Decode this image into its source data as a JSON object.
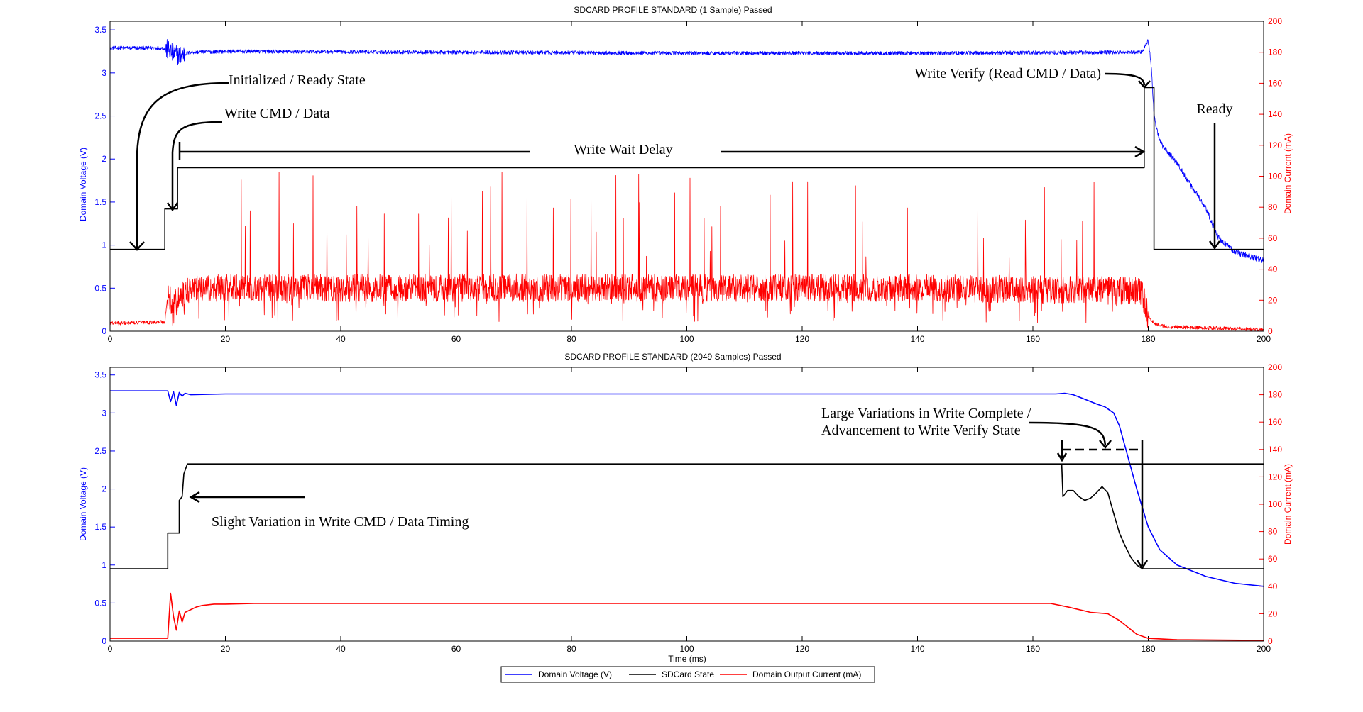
{
  "chart_data": [
    {
      "type": "line",
      "title": "SDCARD PROFILE STANDARD (1 Sample) Passed",
      "xlabel": "",
      "ylabel": "Domain Voltage (V)",
      "y2label": "Domain Current (mA)",
      "xlim": [
        0,
        200
      ],
      "ylim": [
        0,
        3.6
      ],
      "y2lim": [
        0,
        200
      ],
      "xticks": [
        0,
        20,
        40,
        60,
        80,
        100,
        120,
        140,
        160,
        180,
        200
      ],
      "yticks": [
        0,
        0.5,
        1,
        1.5,
        2,
        2.5,
        3,
        3.5
      ],
      "y2ticks": [
        0,
        20,
        40,
        60,
        80,
        100,
        120,
        140,
        160,
        180,
        200
      ],
      "grid": false,
      "series": [
        {
          "name": "Domain Voltage (V)",
          "axis": "left",
          "color": "#0000ff",
          "noisy": true,
          "x": [
            0,
            9,
            10,
            11,
            12,
            13,
            14,
            20,
            60,
            100,
            140,
            178,
            179,
            180,
            180.5,
            181,
            182,
            185,
            190,
            192,
            195,
            200
          ],
          "y": [
            3.29,
            3.29,
            3.27,
            3.22,
            3.2,
            3.22,
            3.24,
            3.25,
            3.24,
            3.23,
            3.23,
            3.24,
            3.25,
            3.38,
            3.1,
            2.5,
            2.2,
            1.95,
            1.42,
            1.1,
            0.92,
            0.82
          ]
        },
        {
          "name": "SDCard State",
          "axis": "left",
          "color": "#000000",
          "x": [
            0,
            9.5,
            9.5,
            11.7,
            11.7,
            179.3,
            179.3,
            181,
            181,
            200
          ],
          "y": [
            0.95,
            0.95,
            1.42,
            1.42,
            1.9,
            1.9,
            2.83,
            2.83,
            0.95,
            0.95
          ]
        },
        {
          "name": "Domain Output Current (mA)",
          "axis": "right",
          "color": "#ff0000",
          "noisy": true,
          "spiky": true,
          "x": [
            0,
            9.5,
            10,
            11,
            12,
            14,
            20,
            60,
            100,
            140,
            178,
            179,
            180,
            181,
            183,
            200
          ],
          "y": [
            5,
            6,
            23,
            16,
            22,
            27,
            28,
            28,
            28,
            28,
            26,
            24,
            10,
            5,
            3,
            1
          ]
        }
      ],
      "annotations": [
        "Initialized / Ready State",
        "Write CMD / Data",
        "Write Wait Delay",
        "Write Verify (Read CMD / Data)",
        "Ready"
      ]
    },
    {
      "type": "line",
      "title": "SDCARD PROFILE STANDARD (2049 Samples) Passed",
      "xlabel": "Time (ms)",
      "ylabel": "Domain Voltage (V)",
      "y2label": "Domain Current (mA)",
      "xlim": [
        0,
        200
      ],
      "ylim": [
        0,
        3.6
      ],
      "y2lim": [
        0,
        200
      ],
      "xticks": [
        0,
        20,
        40,
        60,
        80,
        100,
        120,
        140,
        160,
        180,
        200
      ],
      "yticks": [
        0,
        0.5,
        1,
        1.5,
        2,
        2.5,
        3,
        3.5
      ],
      "y2ticks": [
        0,
        20,
        40,
        60,
        80,
        100,
        120,
        140,
        160,
        180,
        200
      ],
      "grid": false,
      "series": [
        {
          "name": "Domain Voltage (V)",
          "axis": "left",
          "color": "#0000ff",
          "x": [
            0,
            10,
            10.5,
            11,
            11.5,
            12,
            12.5,
            13,
            14,
            20,
            60,
            100,
            140,
            164,
            165.5,
            167,
            169,
            171,
            172.5,
            174,
            175,
            178,
            180,
            182,
            185,
            190,
            195,
            200
          ],
          "y": [
            3.29,
            3.29,
            3.15,
            3.28,
            3.1,
            3.27,
            3.22,
            3.26,
            3.24,
            3.25,
            3.25,
            3.25,
            3.25,
            3.25,
            3.26,
            3.24,
            3.18,
            3.12,
            3.08,
            3.0,
            2.83,
            2.0,
            1.5,
            1.2,
            1.0,
            0.85,
            0.76,
            0.72
          ]
        },
        {
          "name": "SDCard State",
          "axis": "left",
          "color": "#000000",
          "x": [
            0,
            10,
            10,
            12,
            12,
            12.5,
            12.8,
            13.4,
            200
          ],
          "y": [
            0.95,
            0.95,
            1.42,
            1.42,
            1.85,
            1.9,
            2.2,
            2.33,
            2.33
          ],
          "tail": {
            "x": [
              165,
              165.2,
              166,
              167,
              168,
              169,
              170,
              171,
              172,
              173,
              174,
              175,
              176,
              177,
              178,
              179,
              180,
              200
            ],
            "y": [
              2.33,
              1.9,
              1.98,
              1.98,
              1.9,
              1.85,
              1.88,
              1.95,
              2.03,
              1.95,
              1.68,
              1.42,
              1.25,
              1.1,
              1.0,
              0.95,
              0.95,
              0.95
            ]
          }
        },
        {
          "name": "Domain Output Current (mA)",
          "axis": "right",
          "color": "#ff0000",
          "x": [
            0,
            10,
            10.5,
            11,
            11.5,
            12,
            12.5,
            13,
            14,
            15,
            16,
            18,
            20,
            25,
            30,
            40,
            60,
            100,
            140,
            163,
            166,
            170,
            173,
            175,
            178,
            180,
            185,
            200
          ],
          "y": [
            2,
            2,
            35,
            18,
            8,
            22,
            14,
            21,
            23,
            25,
            26,
            27,
            27,
            27.5,
            27.5,
            27.5,
            27.5,
            27.5,
            27.5,
            27.5,
            25,
            21,
            20,
            15,
            5,
            2,
            1,
            0.5
          ]
        }
      ],
      "annotations": [
        "Large Variations in Write Complete /",
        "Advancement to Write Verify State",
        "Slight Variation in Write CMD / Data Timing"
      ]
    }
  ],
  "legend": {
    "items": [
      {
        "label": "Domain Voltage (V)",
        "color": "#0000ff"
      },
      {
        "label": "SDCard State",
        "color": "#000000"
      },
      {
        "label": "Domain Output Current (mA)",
        "color": "#ff0000"
      }
    ]
  }
}
